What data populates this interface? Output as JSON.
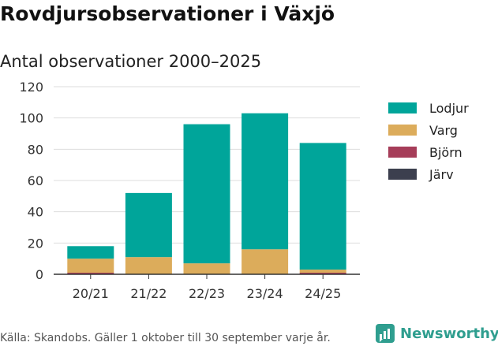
{
  "header": {
    "title": "Rovdjursobservationer i Växjö",
    "subtitle": "Antal observationer 2000–2025"
  },
  "footer": {
    "source": "Källa: Skandobs. Gäller 1 oktober till 30 september varje år.",
    "brand": "Newsworthy"
  },
  "colors": {
    "Lodjur": "#00a59a",
    "Varg": "#dcac5b",
    "Björn": "#a63d59",
    "Järv": "#3c3f4e",
    "brand": "#2f9e8f"
  },
  "chart_data": {
    "type": "bar",
    "stacked": true,
    "title": "Antal observationer 2000–2025",
    "xlabel": "",
    "ylabel": "",
    "ylim": [
      0,
      120
    ],
    "yticks": [
      "0",
      "20",
      "40",
      "60",
      "80",
      "100",
      "120"
    ],
    "grid": true,
    "legend_position": "right",
    "categories": [
      "20/21",
      "21/22",
      "22/23",
      "23/24",
      "24/25"
    ],
    "series": [
      {
        "name": "Järv",
        "values": [
          0,
          0,
          0,
          0,
          0
        ]
      },
      {
        "name": "Björn",
        "values": [
          1,
          0,
          0,
          0,
          1
        ]
      },
      {
        "name": "Varg",
        "values": [
          9,
          11,
          7,
          16,
          2
        ]
      },
      {
        "name": "Lodjur",
        "values": [
          8,
          41,
          89,
          87,
          81
        ]
      }
    ],
    "legend_order": [
      "Lodjur",
      "Varg",
      "Björn",
      "Järv"
    ]
  }
}
